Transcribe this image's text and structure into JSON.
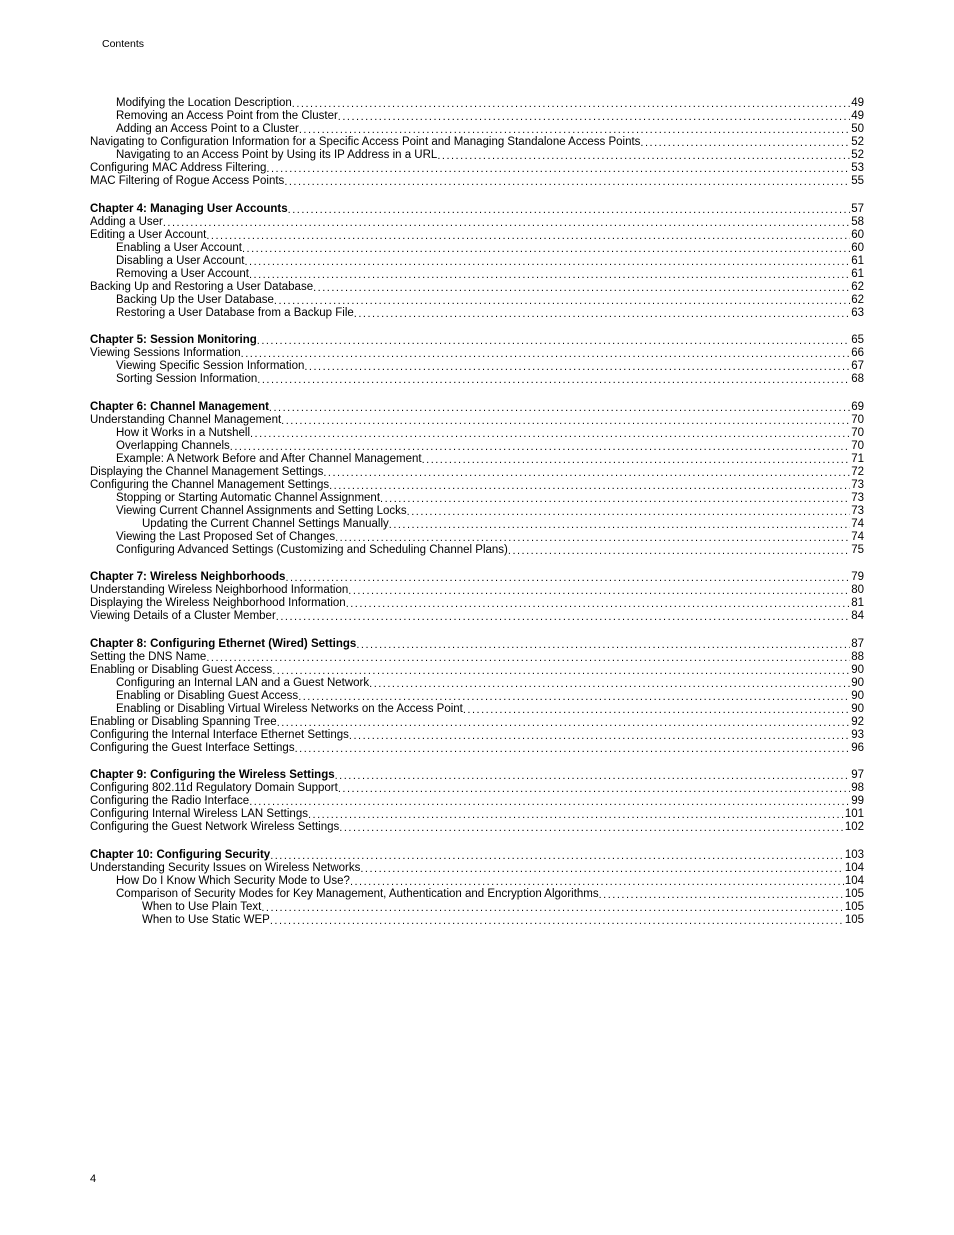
{
  "header": "Contents",
  "footer_page": "4",
  "groups": [
    {
      "entries": [
        {
          "indent": 1,
          "bold": false,
          "title": "Modifying the Location Description",
          "page": "49"
        },
        {
          "indent": 1,
          "bold": false,
          "title": "Removing an Access Point from the Cluster",
          "page": "49"
        },
        {
          "indent": 1,
          "bold": false,
          "title": "Adding an Access Point to a Cluster",
          "page": "50"
        },
        {
          "indent": 0,
          "bold": false,
          "title": "Navigating to Configuration Information for a Specific Access Point and Managing Standalone Access Points",
          "page": "52"
        },
        {
          "indent": 1,
          "bold": false,
          "title": "Navigating to an Access Point by Using its IP Address in a URL",
          "page": "52"
        },
        {
          "indent": 0,
          "bold": false,
          "title": "Configuring MAC Address Filtering",
          "page": "53"
        },
        {
          "indent": 0,
          "bold": false,
          "title": "MAC Filtering of Rogue Access Points",
          "page": "55"
        }
      ]
    },
    {
      "entries": [
        {
          "indent": 0,
          "bold": true,
          "title": "Chapter 4: Managing User Accounts",
          "page": "57"
        },
        {
          "indent": 0,
          "bold": false,
          "title": "Adding a User",
          "page": "58"
        },
        {
          "indent": 0,
          "bold": false,
          "title": "Editing a User Account",
          "page": "60"
        },
        {
          "indent": 1,
          "bold": false,
          "title": "Enabling a User Account",
          "page": "60"
        },
        {
          "indent": 1,
          "bold": false,
          "title": "Disabling a User Account",
          "page": "61"
        },
        {
          "indent": 1,
          "bold": false,
          "title": "Removing a User Account",
          "page": "61"
        },
        {
          "indent": 0,
          "bold": false,
          "title": "Backing Up and Restoring a User Database",
          "page": "62"
        },
        {
          "indent": 1,
          "bold": false,
          "title": "Backing Up the User Database",
          "page": "62"
        },
        {
          "indent": 1,
          "bold": false,
          "title": "Restoring a User Database from a Backup File",
          "page": "63"
        }
      ]
    },
    {
      "entries": [
        {
          "indent": 0,
          "bold": true,
          "title": "Chapter 5: Session Monitoring",
          "page": "65"
        },
        {
          "indent": 0,
          "bold": false,
          "title": "Viewing Sessions Information",
          "page": "66"
        },
        {
          "indent": 1,
          "bold": false,
          "title": "Viewing Specific Session Information",
          "page": "67"
        },
        {
          "indent": 1,
          "bold": false,
          "title": "Sorting Session Information",
          "page": "68"
        }
      ]
    },
    {
      "entries": [
        {
          "indent": 0,
          "bold": true,
          "title": "Chapter 6: Channel Management",
          "page": "69"
        },
        {
          "indent": 0,
          "bold": false,
          "title": "Understanding Channel Management",
          "page": "70"
        },
        {
          "indent": 1,
          "bold": false,
          "title": "How it Works in a Nutshell",
          "page": "70"
        },
        {
          "indent": 1,
          "bold": false,
          "title": "Overlapping Channels",
          "page": "70"
        },
        {
          "indent": 1,
          "bold": false,
          "title": "Example: A Network Before and After Channel Management",
          "page": "71"
        },
        {
          "indent": 0,
          "bold": false,
          "title": "Displaying the Channel Management Settings",
          "page": "72"
        },
        {
          "indent": 0,
          "bold": false,
          "title": "Configuring the Channel Management Settings",
          "page": "73"
        },
        {
          "indent": 1,
          "bold": false,
          "title": "Stopping or Starting Automatic Channel Assignment",
          "page": "73"
        },
        {
          "indent": 1,
          "bold": false,
          "title": "Viewing Current Channel Assignments and Setting Locks",
          "page": "73"
        },
        {
          "indent": 2,
          "bold": false,
          "title": "Updating the Current Channel Settings Manually",
          "page": "74"
        },
        {
          "indent": 1,
          "bold": false,
          "title": "Viewing the Last Proposed Set of Changes",
          "page": "74"
        },
        {
          "indent": 1,
          "bold": false,
          "title": "Configuring Advanced Settings (Customizing and Scheduling Channel Plans)",
          "page": "75"
        }
      ]
    },
    {
      "entries": [
        {
          "indent": 0,
          "bold": true,
          "title": "Chapter 7: Wireless Neighborhoods",
          "page": "79"
        },
        {
          "indent": 0,
          "bold": false,
          "title": "Understanding Wireless Neighborhood Information",
          "page": "80"
        },
        {
          "indent": 0,
          "bold": false,
          "title": "Displaying the Wireless Neighborhood Information",
          "page": "81"
        },
        {
          "indent": 0,
          "bold": false,
          "title": "Viewing Details of a Cluster Member",
          "page": "84"
        }
      ]
    },
    {
      "entries": [
        {
          "indent": 0,
          "bold": true,
          "title": "Chapter 8: Configuring Ethernet (Wired) Settings",
          "page": "87"
        },
        {
          "indent": 0,
          "bold": false,
          "title": "Setting the DNS Name",
          "page": "88"
        },
        {
          "indent": 0,
          "bold": false,
          "title": "Enabling or Disabling Guest Access",
          "page": "90"
        },
        {
          "indent": 1,
          "bold": false,
          "title": "Configuring an Internal LAN and a Guest Network",
          "page": "90"
        },
        {
          "indent": 1,
          "bold": false,
          "title": "Enabling or Disabling Guest Access",
          "page": "90"
        },
        {
          "indent": 1,
          "bold": false,
          "title": "Enabling or Disabling Virtual Wireless Networks on the Access Point",
          "page": "90"
        },
        {
          "indent": 0,
          "bold": false,
          "title": "Enabling or Disabling Spanning Tree",
          "page": "92"
        },
        {
          "indent": 0,
          "bold": false,
          "title": "Configuring the Internal Interface Ethernet Settings",
          "page": "93"
        },
        {
          "indent": 0,
          "bold": false,
          "title": "Configuring the Guest Interface Settings",
          "page": "96"
        }
      ]
    },
    {
      "entries": [
        {
          "indent": 0,
          "bold": true,
          "title": "Chapter 9: Configuring the Wireless Settings",
          "page": "97"
        },
        {
          "indent": 0,
          "bold": false,
          "title": "Configuring 802.11d Regulatory Domain Support",
          "page": "98"
        },
        {
          "indent": 0,
          "bold": false,
          "title": "Configuring the Radio Interface",
          "page": "99"
        },
        {
          "indent": 0,
          "bold": false,
          "title": "Configuring Internal Wireless LAN Settings",
          "page": "101"
        },
        {
          "indent": 0,
          "bold": false,
          "title": "Configuring the Guest Network Wireless Settings",
          "page": "102"
        }
      ]
    },
    {
      "entries": [
        {
          "indent": 0,
          "bold": true,
          "title": "Chapter 10: Configuring Security",
          "page": "103"
        },
        {
          "indent": 0,
          "bold": false,
          "title": "Understanding Security Issues on Wireless Networks",
          "page": "104"
        },
        {
          "indent": 1,
          "bold": false,
          "title": "How Do I Know Which Security Mode to Use?",
          "page": "104"
        },
        {
          "indent": 1,
          "bold": false,
          "title": "Comparison of Security Modes for Key Management, Authentication and Encryption Algorithms",
          "page": "105"
        },
        {
          "indent": 2,
          "bold": false,
          "title": "When to Use Plain Text",
          "page": "105"
        },
        {
          "indent": 2,
          "bold": false,
          "title": "When to Use Static WEP",
          "page": "105"
        }
      ]
    }
  ]
}
